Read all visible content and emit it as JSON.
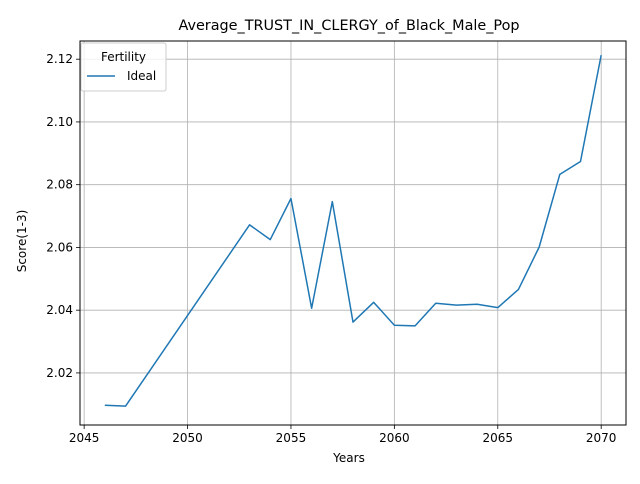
{
  "chart_data": {
    "type": "line",
    "title": "Average_TRUST_IN_CLERGY_of_Black_Male_Pop",
    "xlabel": "Years",
    "ylabel": "Score(1-3)",
    "xlim": [
      2044.8,
      2071.2
    ],
    "ylim": [
      2.0034,
      2.1258
    ],
    "xticks": [
      2045,
      2050,
      2055,
      2060,
      2065,
      2070
    ],
    "yticks": [
      2.02,
      2.04,
      2.06,
      2.08,
      2.1,
      2.12
    ],
    "grid": true,
    "legend": {
      "title": "Fertility",
      "placement": "top-left"
    },
    "series": [
      {
        "name": "Ideal",
        "color": "#1f77b4",
        "x": [
          2046,
          2047,
          2053,
          2054,
          2055,
          2056,
          2057,
          2058,
          2059,
          2060,
          2061,
          2062,
          2063,
          2064,
          2065,
          2066,
          2067,
          2068,
          2069,
          2070
        ],
        "y": [
          2.0097,
          2.0094,
          2.0672,
          2.0625,
          2.0756,
          2.0406,
          2.0746,
          2.0362,
          2.0425,
          2.0352,
          2.035,
          2.0422,
          2.0416,
          2.0419,
          2.0408,
          2.0466,
          2.0601,
          2.0833,
          2.0874,
          2.1213
        ]
      }
    ]
  }
}
